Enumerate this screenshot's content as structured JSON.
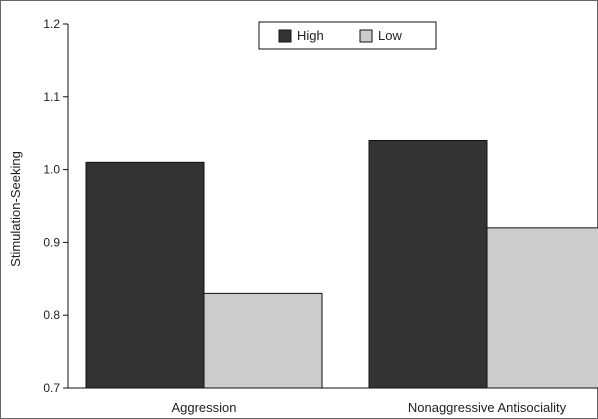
{
  "chart_data": {
    "type": "bar",
    "ylabel": "Stimulation-Seeking",
    "ylim": [
      0.7,
      1.2
    ],
    "yticks": [
      "0.7",
      "0.8",
      "0.9",
      "1.0",
      "1.1",
      "1.2"
    ],
    "categories": [
      "Aggression",
      "Nonaggressive Antisociality"
    ],
    "series": [
      {
        "name": "High",
        "values": [
          1.01,
          1.04
        ]
      },
      {
        "name": "Low",
        "values": [
          0.83,
          0.92
        ]
      }
    ],
    "legend_position": "top-center",
    "grid": false,
    "colors": {
      "High": "#333333",
      "Low": "#cccccc",
      "edge": "#111111"
    }
  }
}
